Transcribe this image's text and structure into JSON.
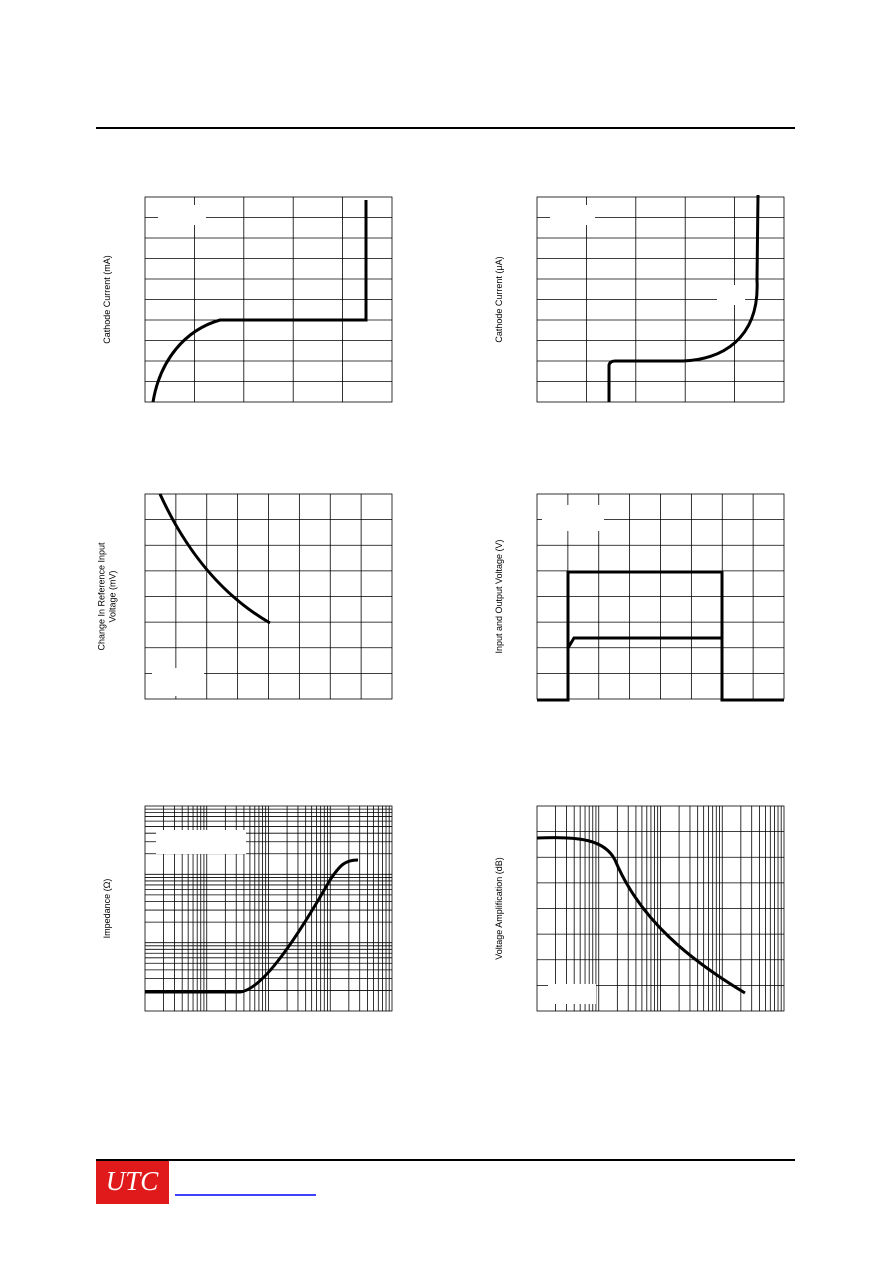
{
  "charts": [
    {
      "y_label": [
        "Cathode Current (mA)"
      ]
    },
    {
      "y_label": [
        "Cathode Current (μA)"
      ]
    },
    {
      "y_label": [
        "Change In Reference Input",
        "Voltage  (mV)"
      ]
    },
    {
      "y_label": [
        "Input and Output Voltage (V)"
      ]
    },
    {
      "y_label": [
        "Impedance  (Ω)"
      ]
    },
    {
      "y_label": [
        "Voltage Amplification (dB)"
      ]
    }
  ],
  "footer": {
    "logo": "UTC"
  }
}
